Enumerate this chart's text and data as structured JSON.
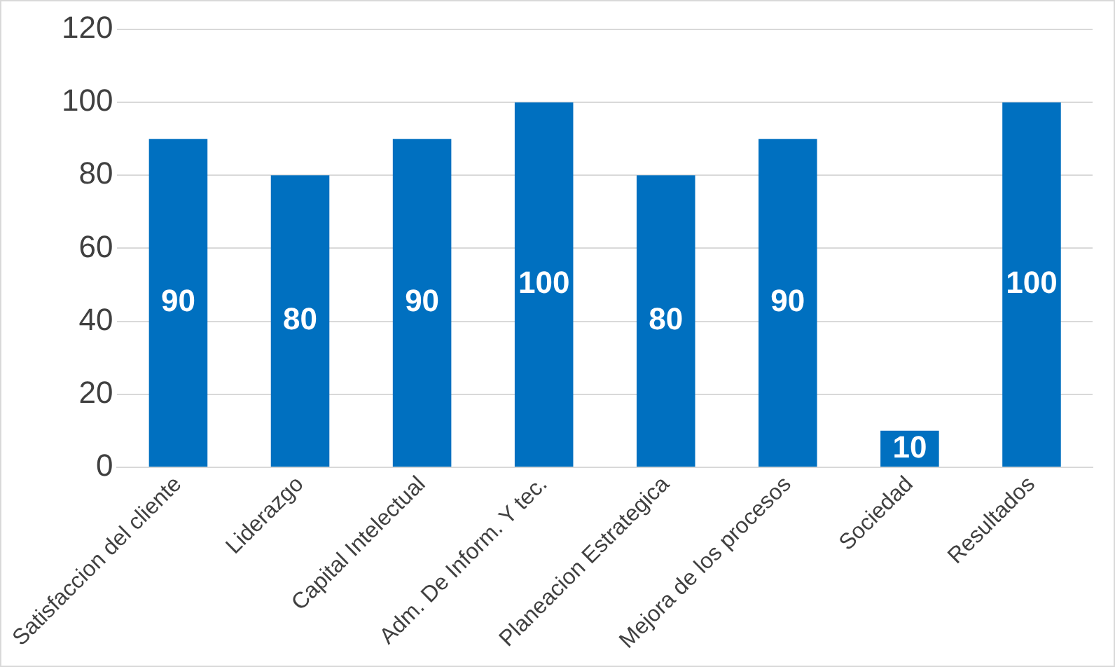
{
  "chart_data": {
    "type": "bar",
    "categories": [
      "Satisfaccion del cliente",
      "Liderazgo",
      "Capital Intelectual",
      "Adm. De Inform. Y tec.",
      "Planeacion Estrategica",
      "Mejora de los procesos",
      "Sociedad",
      "Resultados"
    ],
    "values": [
      90,
      80,
      90,
      100,
      80,
      90,
      10,
      100
    ],
    "color": "#0070c0",
    "ylim": [
      0,
      120
    ],
    "yticks": [
      0,
      20,
      40,
      60,
      80,
      100,
      120
    ],
    "grid": "y",
    "legend": false,
    "data_labels": true
  }
}
